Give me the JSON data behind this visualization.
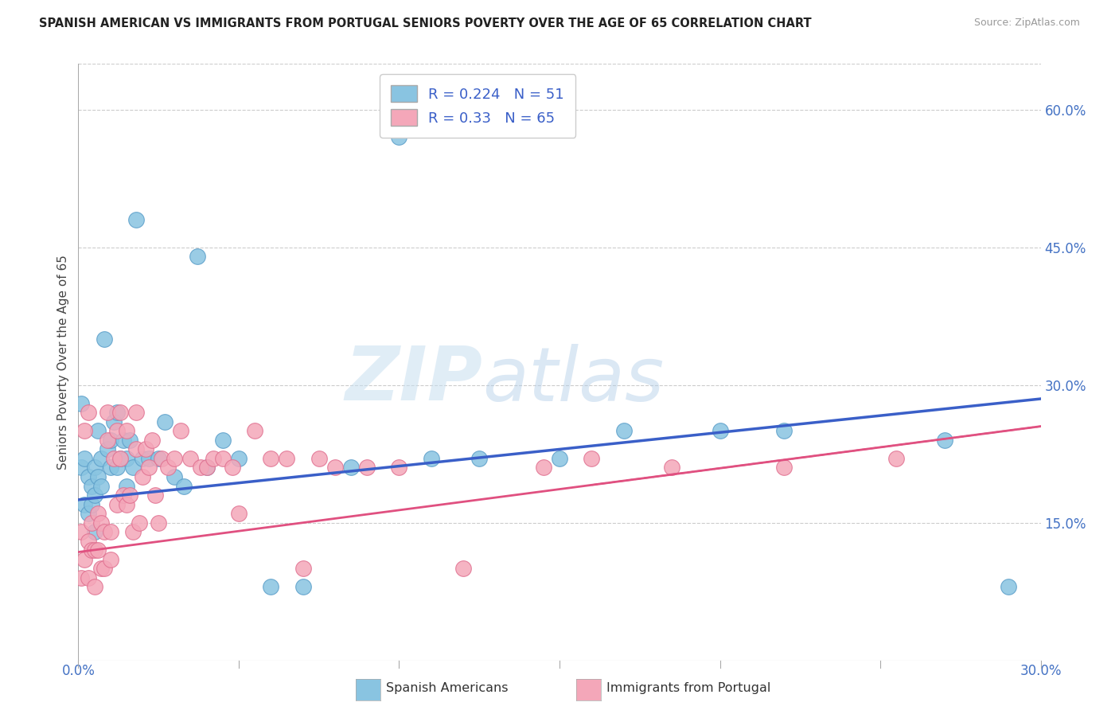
{
  "title": "SPANISH AMERICAN VS IMMIGRANTS FROM PORTUGAL SENIORS POVERTY OVER THE AGE OF 65 CORRELATION CHART",
  "source": "Source: ZipAtlas.com",
  "ylabel": "Seniors Poverty Over the Age of 65",
  "xlim": [
    0,
    0.3
  ],
  "ylim": [
    0,
    0.65
  ],
  "xtick_positions": [
    0.0,
    0.05,
    0.1,
    0.15,
    0.2,
    0.25,
    0.3
  ],
  "xticklabels": [
    "0.0%",
    "",
    "",
    "",
    "",
    "",
    "30.0%"
  ],
  "yticks_right": [
    0.15,
    0.3,
    0.45,
    0.6
  ],
  "ytick_right_labels": [
    "15.0%",
    "30.0%",
    "45.0%",
    "60.0%"
  ],
  "R_blue": 0.224,
  "N_blue": 51,
  "R_pink": 0.33,
  "N_pink": 65,
  "blue_color": "#89c4e1",
  "pink_color": "#f4a7b9",
  "blue_edge": "#5b9ec9",
  "pink_edge": "#e07090",
  "trend_blue": "#3a5fc8",
  "trend_pink": "#e05080",
  "blue_scatter_x": [
    0.001,
    0.001,
    0.002,
    0.002,
    0.003,
    0.003,
    0.004,
    0.004,
    0.005,
    0.005,
    0.005,
    0.006,
    0.006,
    0.007,
    0.007,
    0.008,
    0.009,
    0.01,
    0.01,
    0.011,
    0.012,
    0.012,
    0.013,
    0.014,
    0.015,
    0.015,
    0.016,
    0.017,
    0.018,
    0.02,
    0.022,
    0.025,
    0.027,
    0.03,
    0.033,
    0.037,
    0.04,
    0.045,
    0.05,
    0.06,
    0.07,
    0.085,
    0.1,
    0.11,
    0.125,
    0.15,
    0.17,
    0.2,
    0.22,
    0.27,
    0.29
  ],
  "blue_scatter_y": [
    0.28,
    0.21,
    0.22,
    0.17,
    0.2,
    0.16,
    0.19,
    0.17,
    0.21,
    0.18,
    0.14,
    0.25,
    0.2,
    0.19,
    0.22,
    0.35,
    0.23,
    0.24,
    0.21,
    0.26,
    0.21,
    0.27,
    0.22,
    0.24,
    0.22,
    0.19,
    0.24,
    0.21,
    0.48,
    0.22,
    0.22,
    0.22,
    0.26,
    0.2,
    0.19,
    0.44,
    0.21,
    0.24,
    0.22,
    0.08,
    0.08,
    0.21,
    0.57,
    0.22,
    0.22,
    0.22,
    0.25,
    0.25,
    0.25,
    0.24,
    0.08
  ],
  "pink_scatter_x": [
    0.001,
    0.001,
    0.002,
    0.002,
    0.003,
    0.003,
    0.003,
    0.004,
    0.004,
    0.005,
    0.005,
    0.006,
    0.006,
    0.007,
    0.007,
    0.008,
    0.008,
    0.009,
    0.009,
    0.01,
    0.01,
    0.011,
    0.012,
    0.012,
    0.013,
    0.013,
    0.014,
    0.015,
    0.015,
    0.016,
    0.017,
    0.018,
    0.018,
    0.019,
    0.02,
    0.021,
    0.022,
    0.023,
    0.024,
    0.025,
    0.026,
    0.028,
    0.03,
    0.032,
    0.035,
    0.038,
    0.04,
    0.042,
    0.045,
    0.048,
    0.05,
    0.055,
    0.06,
    0.065,
    0.07,
    0.075,
    0.08,
    0.09,
    0.1,
    0.12,
    0.145,
    0.16,
    0.185,
    0.22,
    0.255
  ],
  "pink_scatter_y": [
    0.14,
    0.09,
    0.25,
    0.11,
    0.27,
    0.13,
    0.09,
    0.15,
    0.12,
    0.12,
    0.08,
    0.16,
    0.12,
    0.15,
    0.1,
    0.14,
    0.1,
    0.27,
    0.24,
    0.14,
    0.11,
    0.22,
    0.25,
    0.17,
    0.27,
    0.22,
    0.18,
    0.25,
    0.17,
    0.18,
    0.14,
    0.23,
    0.27,
    0.15,
    0.2,
    0.23,
    0.21,
    0.24,
    0.18,
    0.15,
    0.22,
    0.21,
    0.22,
    0.25,
    0.22,
    0.21,
    0.21,
    0.22,
    0.22,
    0.21,
    0.16,
    0.25,
    0.22,
    0.22,
    0.1,
    0.22,
    0.21,
    0.21,
    0.21,
    0.1,
    0.21,
    0.22,
    0.21,
    0.21,
    0.22
  ],
  "trend_blue_x0": 0.0,
  "trend_blue_y0": 0.175,
  "trend_blue_x1": 0.3,
  "trend_blue_y1": 0.285,
  "trend_pink_x0": 0.0,
  "trend_pink_y0": 0.118,
  "trend_pink_x1": 0.3,
  "trend_pink_y1": 0.255,
  "watermark_zip": "ZIP",
  "watermark_atlas": "atlas",
  "background_color": "#ffffff",
  "grid_color": "#cccccc"
}
